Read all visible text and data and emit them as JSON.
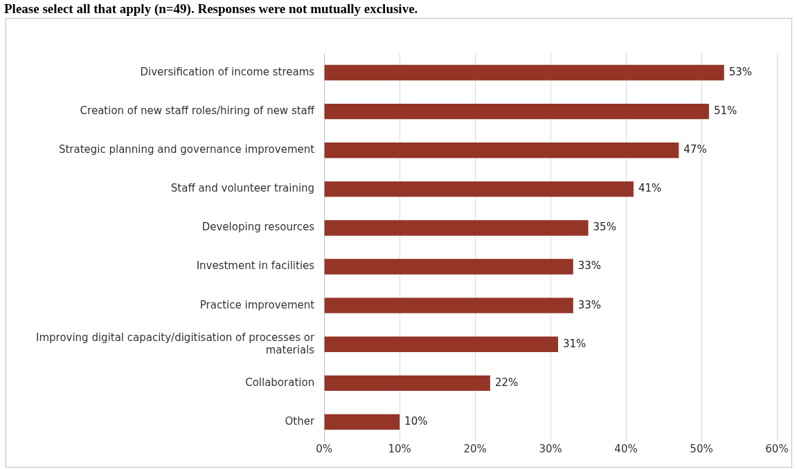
{
  "chart_data": {
    "type": "bar",
    "orientation": "horizontal",
    "title": "Please select all that apply (n=49). Responses were not mutually exclusive.",
    "categories": [
      "Diversification of income streams",
      "Creation of new staff roles/hiring of new staff",
      "Strategic planning and governance improvement",
      "Staff and volunteer training",
      "Developing resources",
      "Investment in facilities",
      "Practice improvement",
      "Improving digital capacity/digitisation of processes or materials",
      "Collaboration",
      "Other"
    ],
    "values": [
      53,
      51,
      47,
      41,
      35,
      33,
      33,
      31,
      22,
      10
    ],
    "color": "#943527",
    "xlim": [
      0,
      60
    ],
    "xticks": [
      {
        "value": 0,
        "label": "0%"
      },
      {
        "value": 10,
        "label": "10%"
      },
      {
        "value": 20,
        "label": "20%"
      },
      {
        "value": 30,
        "label": "30%"
      },
      {
        "value": 40,
        "label": "40%"
      },
      {
        "value": 50,
        "label": "50%"
      },
      {
        "value": 60,
        "label": "60%"
      }
    ],
    "value_labels": [
      "53%",
      "51%",
      "47%",
      "41%",
      "35%",
      "33%",
      "33%",
      "31%",
      "22%",
      "10%"
    ],
    "grid": "x",
    "legend": false
  }
}
